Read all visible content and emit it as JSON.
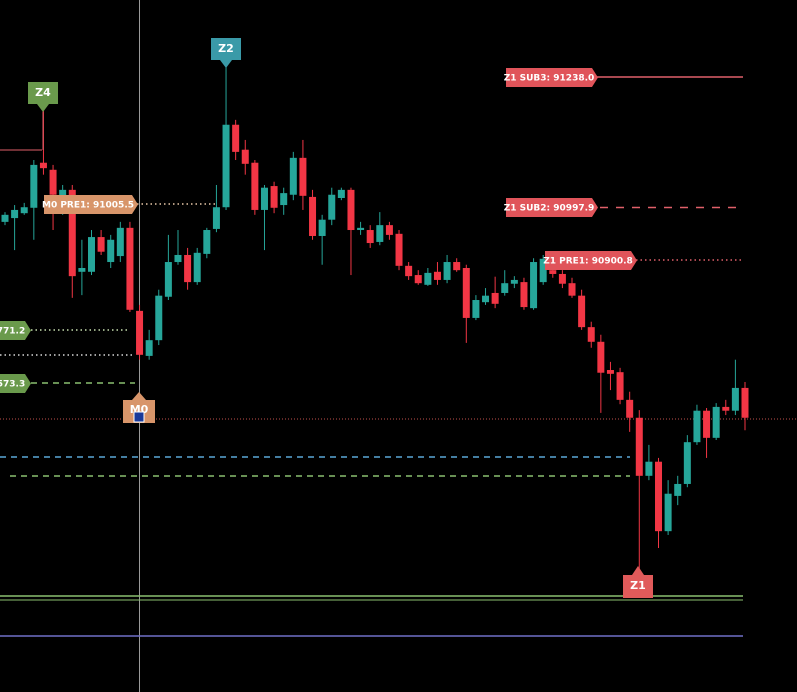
{
  "chart_data": {
    "type": "candlestick",
    "ylim": [
      90104.6,
      91379.9
    ],
    "up_color": "#26a69a",
    "down_color": "#f23645",
    "open": [
      90971,
      90978,
      90987,
      90997,
      91080,
      91067,
      91011,
      91030,
      90879,
      90879,
      90943,
      90897,
      90908,
      90960,
      90807,
      90724,
      90753,
      90833,
      90897,
      90910,
      90860,
      90912,
      90958,
      90998,
      91150,
      91104,
      91080,
      90993,
      91037,
      91002,
      91021,
      91089,
      91017,
      90945,
      90975,
      91015,
      91030,
      90956,
      90956,
      90934,
      90965,
      90949,
      90890,
      90873,
      90855,
      90879,
      90864,
      90897,
      90886,
      90794,
      90823,
      90840,
      90840,
      90857,
      90860,
      90812,
      90860,
      90882,
      90875,
      90858,
      90835,
      90777,
      90750,
      90698,
      90694,
      90643,
      90610,
      90503,
      90529,
      90401,
      90466,
      90488,
      90565,
      90623,
      90573,
      90630,
      90623,
      90665
    ],
    "high": [
      90989,
      91002,
      91006,
      91085,
      91177,
      91076,
      91039,
      91039,
      90938,
      90956,
      90956,
      90947,
      90971,
      90971,
      90818,
      90772,
      90846,
      90947,
      90956,
      90923,
      90923,
      90960,
      91039,
      91260,
      91159,
      91122,
      91085,
      91039,
      91045,
      91034,
      91100,
      91122,
      91030,
      90984,
      91034,
      91034,
      91034,
      90971,
      90965,
      90989,
      90971,
      90956,
      90897,
      90882,
      90886,
      90897,
      90910,
      90904,
      90892,
      90836,
      90849,
      90870,
      90882,
      90871,
      90868,
      90904,
      90910,
      90897,
      90882,
      90868,
      90846,
      90787,
      90763,
      90713,
      90702,
      90658,
      90624,
      90560,
      90536,
      90495,
      90503,
      90578,
      90634,
      90628,
      90637,
      90643,
      90717,
      90676
    ],
    "low": [
      90965,
      90919,
      90984,
      90938,
      91058,
      90956,
      90984,
      90831,
      90836,
      90873,
      90910,
      90886,
      90897,
      90805,
      90717,
      90717,
      90744,
      90827,
      90892,
      90846,
      90855,
      90904,
      90952,
      90993,
      91085,
      91058,
      90984,
      90919,
      90987,
      90984,
      91011,
      90993,
      90938,
      90892,
      90965,
      91011,
      90873,
      90947,
      90923,
      90928,
      90938,
      90882,
      90864,
      90855,
      90853,
      90855,
      90858,
      90879,
      90748,
      90790,
      90818,
      90812,
      90835,
      90849,
      90809,
      90809,
      90855,
      90868,
      90849,
      90831,
      90772,
      90739,
      90619,
      90661,
      90635,
      90584,
      90329,
      90495,
      90370,
      90394,
      90449,
      90482,
      90560,
      90536,
      90569,
      90615,
      90615,
      90587
    ],
    "close": [
      90984,
      90993,
      90998,
      91076,
      91070,
      91021,
      91030,
      90871,
      90886,
      90943,
      90916,
      90938,
      90960,
      90809,
      90726,
      90753,
      90835,
      90897,
      90910,
      90860,
      90914,
      90956,
      90998,
      91150,
      91100,
      91078,
      90993,
      91034,
      90997,
      91024,
      91089,
      91019,
      90945,
      90975,
      91021,
      91030,
      90956,
      90960,
      90932,
      90965,
      90947,
      90890,
      90871,
      90858,
      90877,
      90864,
      90897,
      90882,
      90794,
      90827,
      90835,
      90820,
      90858,
      90864,
      90814,
      90897,
      90903,
      90875,
      90857,
      90835,
      90777,
      90750,
      90693,
      90691,
      90643,
      90610,
      90503,
      90529,
      90401,
      90470,
      90488,
      90565,
      90623,
      90573,
      90630,
      90623,
      90665,
      90610
    ],
    "annotations": [
      "Z4",
      "Z2",
      "Z1",
      "M0",
      "M0 PRE1: 91005.5",
      "Z1 SUB3: 91238.0",
      "Z1 SUB2: 90997.9",
      "Z1 PRE1: 90900.8",
      "771.2",
      "573.3"
    ]
  }
}
